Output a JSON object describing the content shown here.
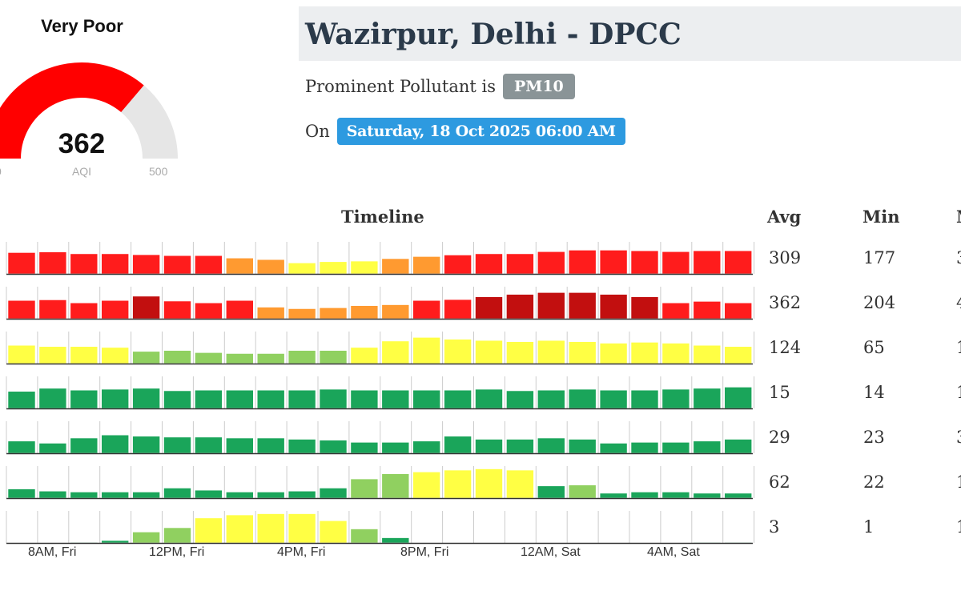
{
  "gauge": {
    "category": "Very Poor",
    "value": "362",
    "unit": "AQI",
    "min": "0",
    "max": "500",
    "fill_fraction": 0.724,
    "fill_color": "#ff0000",
    "track_color": "#e6e6e6"
  },
  "station": {
    "title": "Wazirpur, Delhi - DPCC"
  },
  "pollutant": {
    "prefix": "Prominent Pollutant is",
    "name": "PM10"
  },
  "date": {
    "prefix": "On",
    "value": "Saturday, 18 Oct 2025 06:00 AM"
  },
  "table_headers": {
    "timeline": "Timeline",
    "avg": "Avg",
    "min": "Min",
    "max": "M"
  },
  "x_labels": [
    "8AM, Fri",
    "12PM, Fri",
    "4PM, Fri",
    "8PM, Fri",
    "12AM, Sat",
    "4AM, Sat"
  ],
  "colors": {
    "good": "#1aa55a",
    "satisfactory": "#90d060",
    "moderate": "#ffff44",
    "poor": "#ff9a30",
    "very_poor": "#ff1c1c",
    "severe": "#c20f0f"
  },
  "chart_data": {
    "type": "bar",
    "rows": [
      {
        "avg": "309",
        "min": "177",
        "max": "3",
        "levels": [
          0.7,
          0.72,
          0.66,
          0.66,
          0.63,
          0.6,
          0.6,
          0.52,
          0.47,
          0.36,
          0.4,
          0.42,
          0.5,
          0.57,
          0.62,
          0.66,
          0.66,
          0.73,
          0.78,
          0.78,
          0.76,
          0.73,
          0.76,
          0.76
        ],
        "categories": [
          "very_poor",
          "very_poor",
          "very_poor",
          "very_poor",
          "very_poor",
          "very_poor",
          "very_poor",
          "poor",
          "poor",
          "moderate",
          "moderate",
          "moderate",
          "poor",
          "poor",
          "very_poor",
          "very_poor",
          "very_poor",
          "very_poor",
          "very_poor",
          "very_poor",
          "very_poor",
          "very_poor",
          "very_poor",
          "very_poor"
        ]
      },
      {
        "avg": "362",
        "min": "204",
        "max": "4",
        "levels": [
          0.6,
          0.62,
          0.52,
          0.6,
          0.74,
          0.58,
          0.52,
          0.6,
          0.38,
          0.33,
          0.36,
          0.43,
          0.46,
          0.6,
          0.63,
          0.72,
          0.8,
          0.86,
          0.86,
          0.8,
          0.72,
          0.52,
          0.57,
          0.52
        ],
        "categories": [
          "very_poor",
          "very_poor",
          "very_poor",
          "very_poor",
          "severe",
          "very_poor",
          "very_poor",
          "very_poor",
          "poor",
          "poor",
          "poor",
          "poor",
          "poor",
          "very_poor",
          "very_poor",
          "severe",
          "severe",
          "severe",
          "severe",
          "severe",
          "severe",
          "very_poor",
          "very_poor",
          "very_poor"
        ]
      },
      {
        "avg": "124",
        "min": "65",
        "max": "1",
        "levels": [
          0.6,
          0.56,
          0.56,
          0.53,
          0.4,
          0.43,
          0.36,
          0.33,
          0.33,
          0.43,
          0.43,
          0.53,
          0.74,
          0.86,
          0.8,
          0.76,
          0.72,
          0.76,
          0.72,
          0.67,
          0.7,
          0.67,
          0.6,
          0.56
        ],
        "categories": [
          "moderate",
          "moderate",
          "moderate",
          "moderate",
          "satisfactory",
          "satisfactory",
          "satisfactory",
          "satisfactory",
          "satisfactory",
          "satisfactory",
          "satisfactory",
          "moderate",
          "moderate",
          "moderate",
          "moderate",
          "moderate",
          "moderate",
          "moderate",
          "moderate",
          "moderate",
          "moderate",
          "moderate",
          "moderate",
          "moderate"
        ]
      },
      {
        "avg": "15",
        "min": "14",
        "max": "1",
        "levels": [
          0.56,
          0.66,
          0.6,
          0.63,
          0.66,
          0.58,
          0.6,
          0.6,
          0.6,
          0.6,
          0.63,
          0.6,
          0.6,
          0.6,
          0.6,
          0.63,
          0.58,
          0.6,
          0.63,
          0.6,
          0.6,
          0.63,
          0.66,
          0.7
        ],
        "categories": [
          "good",
          "good",
          "good",
          "good",
          "good",
          "good",
          "good",
          "good",
          "good",
          "good",
          "good",
          "good",
          "good",
          "good",
          "good",
          "good",
          "good",
          "good",
          "good",
          "good",
          "good",
          "good",
          "good",
          "good"
        ]
      },
      {
        "avg": "29",
        "min": "23",
        "max": "3",
        "levels": [
          0.4,
          0.33,
          0.5,
          0.6,
          0.56,
          0.53,
          0.53,
          0.5,
          0.5,
          0.46,
          0.43,
          0.36,
          0.36,
          0.4,
          0.56,
          0.46,
          0.46,
          0.5,
          0.46,
          0.33,
          0.36,
          0.36,
          0.4,
          0.46
        ],
        "categories": [
          "good",
          "good",
          "good",
          "good",
          "good",
          "good",
          "good",
          "good",
          "good",
          "good",
          "good",
          "good",
          "good",
          "good",
          "good",
          "good",
          "good",
          "good",
          "good",
          "good",
          "good",
          "good",
          "good",
          "good"
        ]
      },
      {
        "avg": "62",
        "min": "22",
        "max": "1",
        "levels": [
          0.3,
          0.23,
          0.2,
          0.2,
          0.2,
          0.33,
          0.26,
          0.2,
          0.2,
          0.23,
          0.33,
          0.63,
          0.8,
          0.86,
          0.92,
          0.96,
          0.92,
          0.4,
          0.43,
          0.16,
          0.2,
          0.2,
          0.16,
          0.16
        ],
        "categories": [
          "good",
          "good",
          "good",
          "good",
          "good",
          "good",
          "good",
          "good",
          "good",
          "good",
          "good",
          "satisfactory",
          "satisfactory",
          "moderate",
          "moderate",
          "moderate",
          "moderate",
          "good",
          "satisfactory",
          "good",
          "good",
          "good",
          "good",
          "good"
        ]
      },
      {
        "avg": "3",
        "min": "1",
        "max": "1",
        "levels": [
          0.0,
          0.0,
          0.02,
          0.08,
          0.36,
          0.5,
          0.82,
          0.92,
          0.96,
          0.96,
          0.73,
          0.46,
          0.17,
          0.0,
          0.0,
          0.0,
          0.0,
          0.0,
          0.0,
          0.0,
          0.0,
          0.0,
          0.02,
          0.02
        ],
        "categories": [
          "good",
          "good",
          "good",
          "good",
          "satisfactory",
          "satisfactory",
          "moderate",
          "moderate",
          "moderate",
          "moderate",
          "moderate",
          "satisfactory",
          "good",
          "good",
          "good",
          "good",
          "good",
          "good",
          "good",
          "good",
          "good",
          "good",
          "good",
          "good"
        ]
      }
    ]
  }
}
